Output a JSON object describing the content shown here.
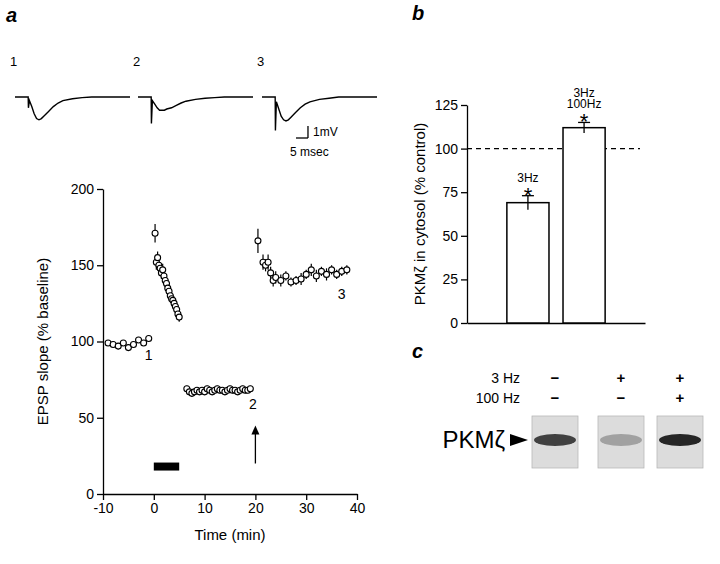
{
  "chart_data": [
    {
      "type": "line",
      "title": "a",
      "tick_labels": false,
      "color": "#000000",
      "xlim": [
        0,
        48
      ],
      "ylim": [
        -3,
        0.5
      ],
      "x": [
        0,
        4,
        5.5,
        5.6,
        6,
        7,
        8,
        9,
        10,
        11,
        12,
        14,
        16,
        18,
        20,
        24,
        28,
        32,
        36,
        40,
        48
      ],
      "series": [
        {
          "name": "1",
          "values": [
            0,
            0,
            0,
            -0.9,
            -0.3,
            -0.8,
            -1.4,
            -1.8,
            -1.9,
            -1.8,
            -1.6,
            -1.2,
            -0.8,
            -0.5,
            -0.3,
            -0.15,
            -0.05,
            0,
            0,
            0,
            0
          ]
        },
        {
          "name": "2",
          "values": [
            0,
            0,
            0,
            -2.2,
            -0.3,
            -0.6,
            -0.9,
            -1.1,
            -1.1,
            -1.1,
            -1.0,
            -0.9,
            -0.7,
            -0.5,
            -0.35,
            -0.2,
            -0.1,
            -0.05,
            0,
            0,
            0
          ]
        },
        {
          "name": "3",
          "values": [
            0,
            0,
            0,
            -2.8,
            -0.4,
            -1.0,
            -1.6,
            -1.9,
            -2.0,
            -1.9,
            -1.7,
            -1.3,
            -0.9,
            -0.6,
            -0.4,
            -0.2,
            -0.1,
            0,
            0,
            0,
            0
          ]
        }
      ],
      "scale_bar": {
        "x_value": 5,
        "x_label": "5 msec",
        "y_value": 1,
        "y_label": "1mV"
      }
    },
    {
      "type": "scatter",
      "marker": "circle-open",
      "color": "#000000",
      "x_label": "Time (min)",
      "y_label": "EPSP slope (% baseline)",
      "xlim": [
        -10,
        40
      ],
      "xticks": [
        -10,
        0,
        10,
        20,
        30,
        40
      ],
      "ylim": [
        0,
        200
      ],
      "yticks": [
        0,
        50,
        100,
        150,
        200
      ],
      "x": [
        -9,
        -8,
        -7,
        -6,
        -5,
        -4,
        -3,
        -2,
        -1,
        0.25,
        0.5,
        0.75,
        1,
        1.25,
        1.5,
        1.75,
        2,
        2.25,
        2.5,
        2.75,
        3,
        3.25,
        3.5,
        3.75,
        4,
        4.25,
        4.5,
        4.75,
        5,
        6.5,
        7,
        7.5,
        8,
        8.5,
        9,
        9.5,
        10,
        10.5,
        11,
        11.5,
        12,
        12.5,
        13,
        13.5,
        14,
        14.5,
        15,
        15.5,
        16,
        16.5,
        17,
        17.5,
        18,
        18.5,
        19,
        20.5,
        21.5,
        22,
        22.5,
        23,
        23.5,
        24,
        25,
        26,
        27,
        28,
        29,
        30,
        31,
        32,
        33,
        34,
        35,
        36,
        37,
        38
      ],
      "values": [
        99,
        98,
        97,
        99,
        96,
        98,
        101,
        99,
        102,
        171,
        152,
        155,
        150,
        148,
        145,
        147,
        143,
        140,
        138,
        135,
        133,
        130,
        128,
        127,
        125,
        123,
        121,
        118,
        116,
        69,
        67,
        66,
        67,
        68,
        67,
        68,
        67,
        69,
        68,
        67,
        68,
        69,
        68,
        68,
        67,
        68,
        69,
        68,
        68,
        67,
        68,
        69,
        68,
        68,
        69,
        166,
        152,
        150,
        152,
        145,
        140,
        142,
        140,
        143,
        139,
        140,
        141,
        144,
        147,
        143,
        146,
        144,
        147,
        144,
        146,
        147
      ],
      "errors": [
        2,
        2,
        2,
        2,
        2,
        2,
        2,
        2,
        2,
        6,
        5,
        4,
        4,
        4,
        4,
        4,
        4,
        4,
        4,
        4,
        4,
        3,
        3,
        3,
        3,
        3,
        3,
        3,
        3,
        2,
        2,
        2,
        2,
        2,
        2,
        2,
        2,
        2,
        2,
        2,
        2,
        2,
        2,
        2,
        2,
        2,
        2,
        2,
        2,
        2,
        2,
        2,
        2,
        2,
        2,
        8,
        5,
        4,
        5,
        4,
        4,
        4,
        4,
        3,
        3,
        3,
        4,
        3,
        4,
        4,
        3,
        4,
        3,
        3,
        3,
        3
      ],
      "annotations": [
        {
          "text": "1",
          "x": -1,
          "y": 90
        },
        {
          "text": "2",
          "x": 19.5,
          "y": 58
        },
        {
          "text": "3",
          "x": 37,
          "y": 130
        }
      ],
      "stimulus_bar": {
        "x": [
          0,
          5
        ],
        "y": 18
      },
      "arrow": {
        "x": 20,
        "y": [
          20,
          45
        ]
      }
    },
    {
      "type": "bar",
      "title": "b",
      "color": "#ffffff",
      "tick_labels": "y",
      "y_label": "PKMζ in cytosol (% control)",
      "categories": [
        "3Hz",
        "3Hz\n100Hz"
      ],
      "values": [
        69,
        112
      ],
      "errors": [
        4,
        3
      ],
      "significance": [
        "*",
        "*"
      ],
      "reference_line": 100,
      "ylim": [
        0,
        125
      ],
      "yticks": [
        0,
        25,
        50,
        75,
        100,
        125
      ]
    },
    {
      "type": "blot",
      "title": "c",
      "rows": [
        {
          "label": "3 Hz",
          "values": [
            "−",
            "+",
            "+"
          ]
        },
        {
          "label": "100 Hz",
          "values": [
            "−",
            "−",
            "+"
          ]
        }
      ],
      "band_label": "PKMζ"
    }
  ]
}
